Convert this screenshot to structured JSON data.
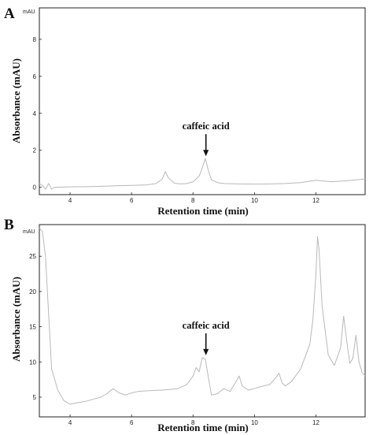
{
  "chart_data": [
    {
      "panel": "A",
      "type": "line",
      "unit_label": "mAU",
      "xlabel": "Retention time (min)",
      "ylabel": "Absorbance (mAU)",
      "xlim": [
        3.0,
        13.6
      ],
      "ylim": [
        -0.4,
        9.7
      ],
      "xticks": [
        4,
        6,
        8,
        10,
        12
      ],
      "yticks": [
        0,
        2,
        4,
        6,
        8
      ],
      "annotation": {
        "text": "caffeic acid",
        "x": 8.42,
        "y": 1.55
      },
      "series": [
        {
          "x": [
            3.0,
            3.1,
            3.2,
            3.3,
            3.4,
            3.5,
            4.0,
            4.5,
            5.0,
            5.5,
            6.0,
            6.5,
            6.8,
            7.0,
            7.1,
            7.2,
            7.4,
            7.6,
            7.8,
            8.0,
            8.2,
            8.3,
            8.4,
            8.5,
            8.6,
            8.8,
            9.0,
            9.5,
            10.0,
            10.5,
            11.0,
            11.5,
            12.0,
            12.5,
            13.0,
            13.6
          ],
          "y": [
            0.2,
            0.1,
            -0.1,
            0.2,
            -0.1,
            0.0,
            0.02,
            0.03,
            0.05,
            0.08,
            0.1,
            0.13,
            0.2,
            0.45,
            0.85,
            0.5,
            0.22,
            0.18,
            0.2,
            0.3,
            0.6,
            1.05,
            1.55,
            0.9,
            0.4,
            0.25,
            0.2,
            0.18,
            0.17,
            0.18,
            0.2,
            0.25,
            0.38,
            0.3,
            0.35,
            0.45
          ]
        }
      ]
    },
    {
      "panel": "B",
      "type": "line",
      "unit_label": "mAU",
      "xlabel": "Retention time (min)",
      "ylabel": "Absorbance (mAU)",
      "xlim": [
        3.0,
        13.6
      ],
      "ylim": [
        2.2,
        29.5
      ],
      "xticks": [
        4,
        6,
        8,
        10,
        12
      ],
      "yticks": [
        5,
        10,
        15,
        20,
        25
      ],
      "annotation": {
        "text": "caffeic acid",
        "x": 8.42,
        "y": 10.6
      },
      "series": [
        {
          "x": [
            3.0,
            3.1,
            3.2,
            3.3,
            3.4,
            3.6,
            3.8,
            4.0,
            4.5,
            5.0,
            5.2,
            5.4,
            5.6,
            5.8,
            6.0,
            6.2,
            6.5,
            7.0,
            7.5,
            7.8,
            8.0,
            8.1,
            8.2,
            8.3,
            8.4,
            8.5,
            8.6,
            8.8,
            9.0,
            9.2,
            9.4,
            9.5,
            9.6,
            9.8,
            10.0,
            10.2,
            10.5,
            10.7,
            10.8,
            10.9,
            11.0,
            11.2,
            11.5,
            11.8,
            11.9,
            12.0,
            12.05,
            12.1,
            12.2,
            12.4,
            12.6,
            12.8,
            12.9,
            13.0,
            13.1,
            13.2,
            13.3,
            13.4,
            13.5,
            13.6
          ],
          "y": [
            29.0,
            28.5,
            25.0,
            17.0,
            9.0,
            6.0,
            4.5,
            4.0,
            4.4,
            5.0,
            5.5,
            6.2,
            5.6,
            5.3,
            5.6,
            5.8,
            5.9,
            6.0,
            6.2,
            6.8,
            8.0,
            9.2,
            8.6,
            10.6,
            10.4,
            7.8,
            5.3,
            5.5,
            6.2,
            5.8,
            7.2,
            8.0,
            6.6,
            6.0,
            6.2,
            6.5,
            6.8,
            7.8,
            8.4,
            7.0,
            6.6,
            7.2,
            9.0,
            12.5,
            16.0,
            22.5,
            27.8,
            26.0,
            18.0,
            11.0,
            9.5,
            12.0,
            16.5,
            13.0,
            9.8,
            10.5,
            13.8,
            10.0,
            8.5,
            8.0
          ]
        }
      ]
    }
  ]
}
